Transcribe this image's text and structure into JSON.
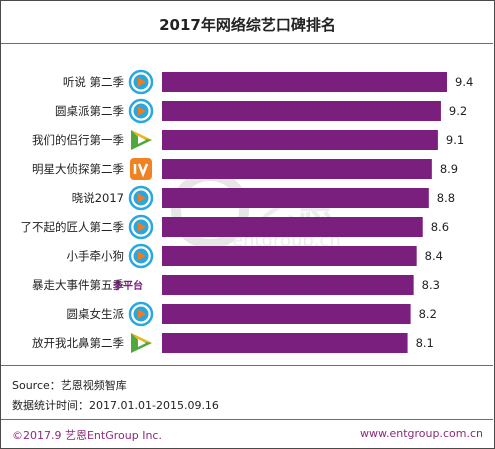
{
  "header": {
    "title": "2017年网络综艺口碑排名"
  },
  "watermark": {
    "logo_text": "艺恩",
    "site": "entgroup.cn"
  },
  "notes": {
    "source": "Source：艺恩视频智库",
    "period": "数据统计时间：2017.01.01-2015.09.16"
  },
  "footer": {
    "left": "©2017.9 艺恩EntGroup Inc.",
    "right": "www.entgroup.com.cn"
  },
  "colors": {
    "bar": "#7b1f7f",
    "text": "#222222",
    "footer": "#8b2a7e"
  },
  "chart_data": {
    "type": "bar",
    "orientation": "horizontal",
    "title": "2017年网络综艺口碑排名",
    "categories": [
      "听说 第二季",
      "圆桌派第二季",
      "我们的侣行第一季",
      "明星大侦探第二季",
      "晓说2017",
      "了不起的匠人第二季",
      "小手牵小狗",
      "暴走大事件第五季",
      "圆桌女生派",
      "放开我北鼻第二季"
    ],
    "values": [
      9.4,
      9.2,
      9.1,
      8.9,
      8.8,
      8.6,
      8.4,
      8.3,
      8.2,
      8.1
    ],
    "platforms": [
      "tencent-icon",
      "tencent-icon",
      "iqiyi-icon",
      "mango-icon",
      "tencent-icon",
      "tencent-icon",
      "tencent-icon",
      "multi-platform",
      "tencent-icon",
      "iqiyi-icon"
    ],
    "platform_text": {
      "multi-platform": "多平台"
    },
    "xlim": [
      0,
      9.4
    ],
    "grid": false,
    "legend": "none"
  }
}
